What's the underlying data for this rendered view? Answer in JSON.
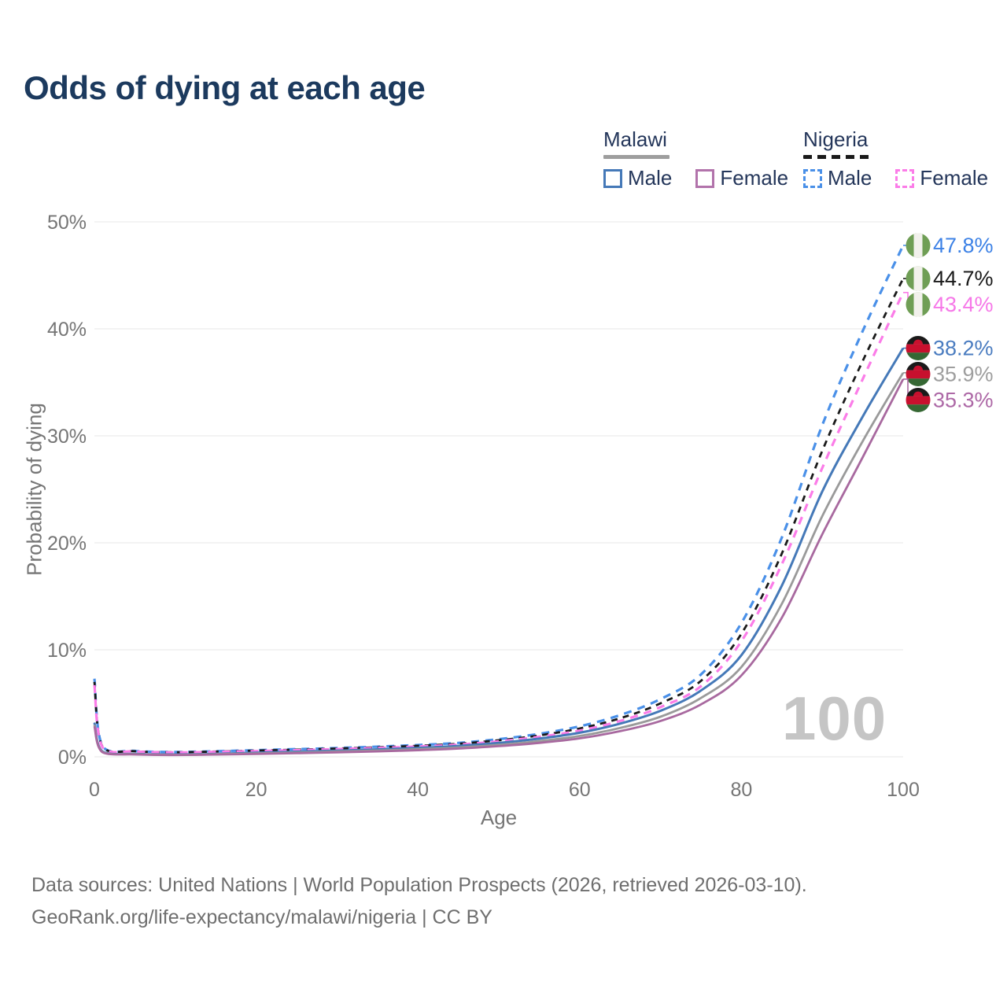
{
  "title": "Odds of dying at each age",
  "watermark": "100",
  "legend": {
    "groups": [
      {
        "name": "Malawi",
        "line_style": "solid",
        "underline_color": "#9e9e9e",
        "items": [
          {
            "label": "Male",
            "color": "#4579b8",
            "dashed": false
          },
          {
            "label": "Female",
            "color": "#b273ab",
            "dashed": false
          }
        ]
      },
      {
        "name": "Nigeria",
        "line_style": "dashed",
        "underline_color": "#1a1a1a",
        "items": [
          {
            "label": "Male",
            "color": "#4a90e8",
            "dashed": true
          },
          {
            "label": "Female",
            "color": "#fb7ce8",
            "dashed": true
          }
        ]
      }
    ]
  },
  "chart_data": {
    "type": "line",
    "title": "Odds of dying at each age",
    "xlabel": "Age",
    "ylabel": "Probability of dying",
    "xlim": [
      0,
      100
    ],
    "ylim": [
      0,
      50
    ],
    "x_ticks": [
      0,
      20,
      40,
      60,
      80,
      100
    ],
    "y_ticks": [
      "0%",
      "10%",
      "20%",
      "30%",
      "40%",
      "50%"
    ],
    "grid": "horizontal",
    "legend_position": "top-right",
    "ages": [
      0,
      1,
      5,
      10,
      15,
      20,
      25,
      30,
      35,
      40,
      45,
      50,
      55,
      60,
      65,
      70,
      75,
      80,
      85,
      90,
      95,
      100
    ],
    "series": [
      {
        "name": "Nigeria Male",
        "country": "Nigeria",
        "sex": "Male",
        "color": "#4a90e8",
        "dash": "10 8",
        "width": 3.2,
        "flag": "nigeria",
        "end_label": "47.8%",
        "end_label_color": "#3d82e6",
        "values": [
          7.3,
          1.0,
          0.55,
          0.45,
          0.52,
          0.62,
          0.72,
          0.82,
          0.95,
          1.1,
          1.3,
          1.65,
          2.15,
          2.85,
          3.9,
          5.4,
          7.7,
          12.5,
          20.5,
          31.0,
          39.8,
          47.8
        ]
      },
      {
        "name": "Nigeria",
        "country": "Nigeria",
        "sex": "Both sexes",
        "color": "#1a1a1a",
        "dash": "8 7",
        "width": 2.8,
        "flag": "nigeria",
        "end_label": "44.7%",
        "end_label_color": "#1a1a1a",
        "values": [
          7.0,
          0.95,
          0.52,
          0.43,
          0.49,
          0.58,
          0.67,
          0.77,
          0.89,
          1.03,
          1.22,
          1.55,
          2.0,
          2.65,
          3.6,
          5.0,
          7.1,
          11.5,
          19.0,
          28.6,
          37.0,
          44.7
        ]
      },
      {
        "name": "Nigeria Female",
        "country": "Nigeria",
        "sex": "Female",
        "color": "#fb7ce8",
        "dash": "10 8",
        "width": 3.2,
        "flag": "nigeria",
        "end_label": "43.4%",
        "end_label_color": "#f678e8",
        "values": [
          6.7,
          0.9,
          0.5,
          0.41,
          0.46,
          0.54,
          0.62,
          0.72,
          0.83,
          0.96,
          1.14,
          1.45,
          1.87,
          2.45,
          3.35,
          4.65,
          6.6,
          10.8,
          18.0,
          27.0,
          35.3,
          43.4
        ]
      },
      {
        "name": "Malawi Male",
        "country": "Malawi",
        "sex": "Male",
        "color": "#4579b8",
        "dash": null,
        "width": 3,
        "flag": "malawi",
        "end_label": "38.2%",
        "end_label_color": "#4a7cc0",
        "values": [
          3.2,
          0.5,
          0.27,
          0.22,
          0.28,
          0.38,
          0.48,
          0.58,
          0.7,
          0.84,
          1.02,
          1.3,
          1.7,
          2.25,
          3.1,
          4.3,
          6.2,
          9.5,
          16.0,
          24.8,
          31.8,
          38.2
        ]
      },
      {
        "name": "Malawi",
        "country": "Malawi",
        "sex": "Both sexes",
        "color": "#9a9a9a",
        "dash": null,
        "width": 2.8,
        "flag": "malawi",
        "end_label": "35.9%",
        "end_label_color": "#9e9e9e",
        "values": [
          3.0,
          0.46,
          0.24,
          0.19,
          0.24,
          0.32,
          0.4,
          0.49,
          0.59,
          0.71,
          0.87,
          1.12,
          1.47,
          1.95,
          2.7,
          3.75,
          5.5,
          8.4,
          14.3,
          22.5,
          29.5,
          35.9
        ]
      },
      {
        "name": "Malawi Female",
        "country": "Malawi",
        "sex": "Female",
        "color": "#a8699f",
        "dash": null,
        "width": 2.8,
        "flag": "malawi",
        "end_label": "35.3%",
        "end_label_color": "#ad68a6",
        "values": [
          2.85,
          0.43,
          0.22,
          0.17,
          0.21,
          0.27,
          0.34,
          0.42,
          0.51,
          0.62,
          0.77,
          1.0,
          1.3,
          1.73,
          2.4,
          3.35,
          4.9,
          7.6,
          13.0,
          20.8,
          28.0,
          35.3
        ]
      }
    ],
    "flag_colors": {
      "nigeria_green": "#6f9e55",
      "nigeria_white": "#f2f1ec",
      "malawi_black": "#1a1a1a",
      "malawi_red": "#c8102e",
      "malawi_green": "#356733"
    }
  },
  "footer": {
    "line1": "Data sources: United Nations | World Population Prospects (2026, retrieved 2026-03-10).",
    "line2": "GeoRank.org/life-expectancy/malawi/nigeria | CC BY"
  }
}
